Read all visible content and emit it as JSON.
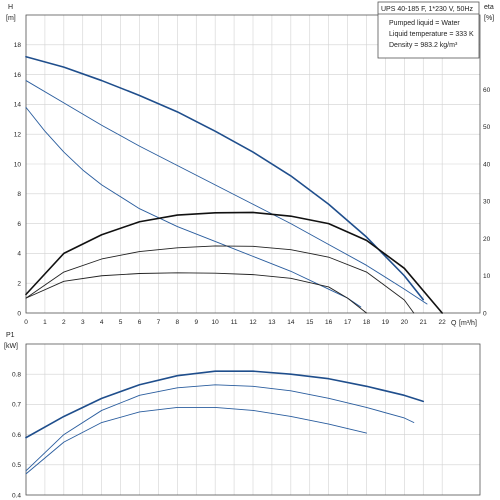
{
  "info_box": {
    "title": "UPS 40-185 F, 1*230 V, 50Hz",
    "lines": [
      "Pumped liquid = Water",
      "Liquid temperature = 333 K",
      "Density = 983.2 kg/m³"
    ]
  },
  "chart_data": [
    {
      "type": "line",
      "title": "",
      "ylabel": "H",
      "yunit": "[m]",
      "y2label": "eta",
      "y2unit": "[%]",
      "xlabel": "Q",
      "xunit": "[m³/h]",
      "xlim": [
        0,
        24
      ],
      "ylim": [
        0,
        20
      ],
      "y2lim": [
        0,
        80
      ],
      "xticks": [
        0,
        1,
        2,
        3,
        4,
        5,
        6,
        7,
        8,
        9,
        10,
        11,
        12,
        13,
        14,
        15,
        16,
        17,
        18,
        19,
        20,
        21,
        22
      ],
      "yticks": [
        0,
        2,
        4,
        6,
        8,
        10,
        12,
        14,
        16,
        18
      ],
      "y2ticks": [
        0,
        10,
        20,
        30,
        40,
        50,
        60
      ],
      "grid": true,
      "series": [
        {
          "kind": "head",
          "color": "#1f4e8c",
          "width": 1.6,
          "x": [
            0,
            2,
            4,
            6,
            8,
            10,
            12,
            14,
            16,
            18,
            20,
            21
          ],
          "y": [
            17.2,
            16.5,
            15.6,
            14.6,
            13.5,
            12.2,
            10.8,
            9.2,
            7.3,
            5.1,
            2.5,
            0.9
          ]
        },
        {
          "kind": "head",
          "color": "#2a5d9e",
          "width": 0.9,
          "x": [
            0,
            2,
            4,
            6,
            8,
            10,
            12,
            14,
            16,
            18,
            20,
            21.2
          ],
          "y": [
            15.6,
            14.1,
            12.6,
            11.2,
            9.9,
            8.6,
            7.3,
            6.0,
            4.6,
            3.2,
            1.6,
            0.6
          ]
        },
        {
          "kind": "head",
          "color": "#2a5d9e",
          "width": 0.9,
          "x": [
            0,
            1,
            2,
            3,
            4,
            6,
            8,
            10,
            12,
            14,
            16,
            17,
            17.7
          ],
          "y": [
            13.8,
            12.2,
            10.8,
            9.6,
            8.6,
            7.0,
            5.8,
            4.8,
            3.8,
            2.8,
            1.6,
            1.0,
            0.4
          ]
        },
        {
          "kind": "eta",
          "color": "#111111",
          "width": 1.6,
          "x": [
            0,
            2,
            4,
            6,
            8,
            10,
            12,
            14,
            16,
            18,
            20,
            22
          ],
          "y": [
            5,
            16,
            21,
            24.5,
            26.3,
            26.9,
            27,
            26,
            24,
            19.5,
            12,
            0
          ]
        },
        {
          "kind": "eta",
          "color": "#222222",
          "width": 0.9,
          "x": [
            0,
            2,
            4,
            6,
            8,
            10,
            12,
            14,
            16,
            18,
            20,
            20.5
          ],
          "y": [
            4,
            11,
            14.5,
            16.5,
            17.5,
            18,
            17.9,
            17,
            15,
            11,
            3.5,
            0
          ]
        },
        {
          "kind": "eta",
          "color": "#222222",
          "width": 0.9,
          "x": [
            0,
            2,
            4,
            6,
            8,
            10,
            12,
            14,
            16,
            17,
            18
          ],
          "y": [
            4,
            8.5,
            10,
            10.6,
            10.8,
            10.7,
            10.3,
            9.3,
            7,
            4,
            0
          ]
        }
      ]
    },
    {
      "type": "line",
      "title": "",
      "ylabel": "P1",
      "yunit": "[kW]",
      "xlim": [
        0,
        24
      ],
      "ylim": [
        0.4,
        0.9
      ],
      "yticks": [
        0.4,
        0.5,
        0.6,
        0.7,
        0.8
      ],
      "grid": true,
      "series": [
        {
          "kind": "power",
          "color": "#1f4e8c",
          "width": 1.6,
          "x": [
            0,
            2,
            4,
            6,
            8,
            10,
            12,
            14,
            16,
            18,
            20,
            21
          ],
          "y": [
            0.59,
            0.66,
            0.72,
            0.765,
            0.795,
            0.81,
            0.81,
            0.8,
            0.785,
            0.76,
            0.73,
            0.71
          ]
        },
        {
          "kind": "power",
          "color": "#2a5d9e",
          "width": 0.9,
          "x": [
            0,
            2,
            4,
            6,
            8,
            10,
            12,
            14,
            16,
            18,
            20,
            20.5
          ],
          "y": [
            0.48,
            0.6,
            0.68,
            0.73,
            0.755,
            0.765,
            0.76,
            0.745,
            0.72,
            0.69,
            0.655,
            0.64
          ]
        },
        {
          "kind": "power",
          "color": "#2a5d9e",
          "width": 0.9,
          "x": [
            0,
            2,
            4,
            6,
            8,
            10,
            12,
            14,
            16,
            17,
            18
          ],
          "y": [
            0.47,
            0.575,
            0.64,
            0.675,
            0.69,
            0.69,
            0.68,
            0.66,
            0.635,
            0.62,
            0.605
          ]
        }
      ]
    }
  ]
}
